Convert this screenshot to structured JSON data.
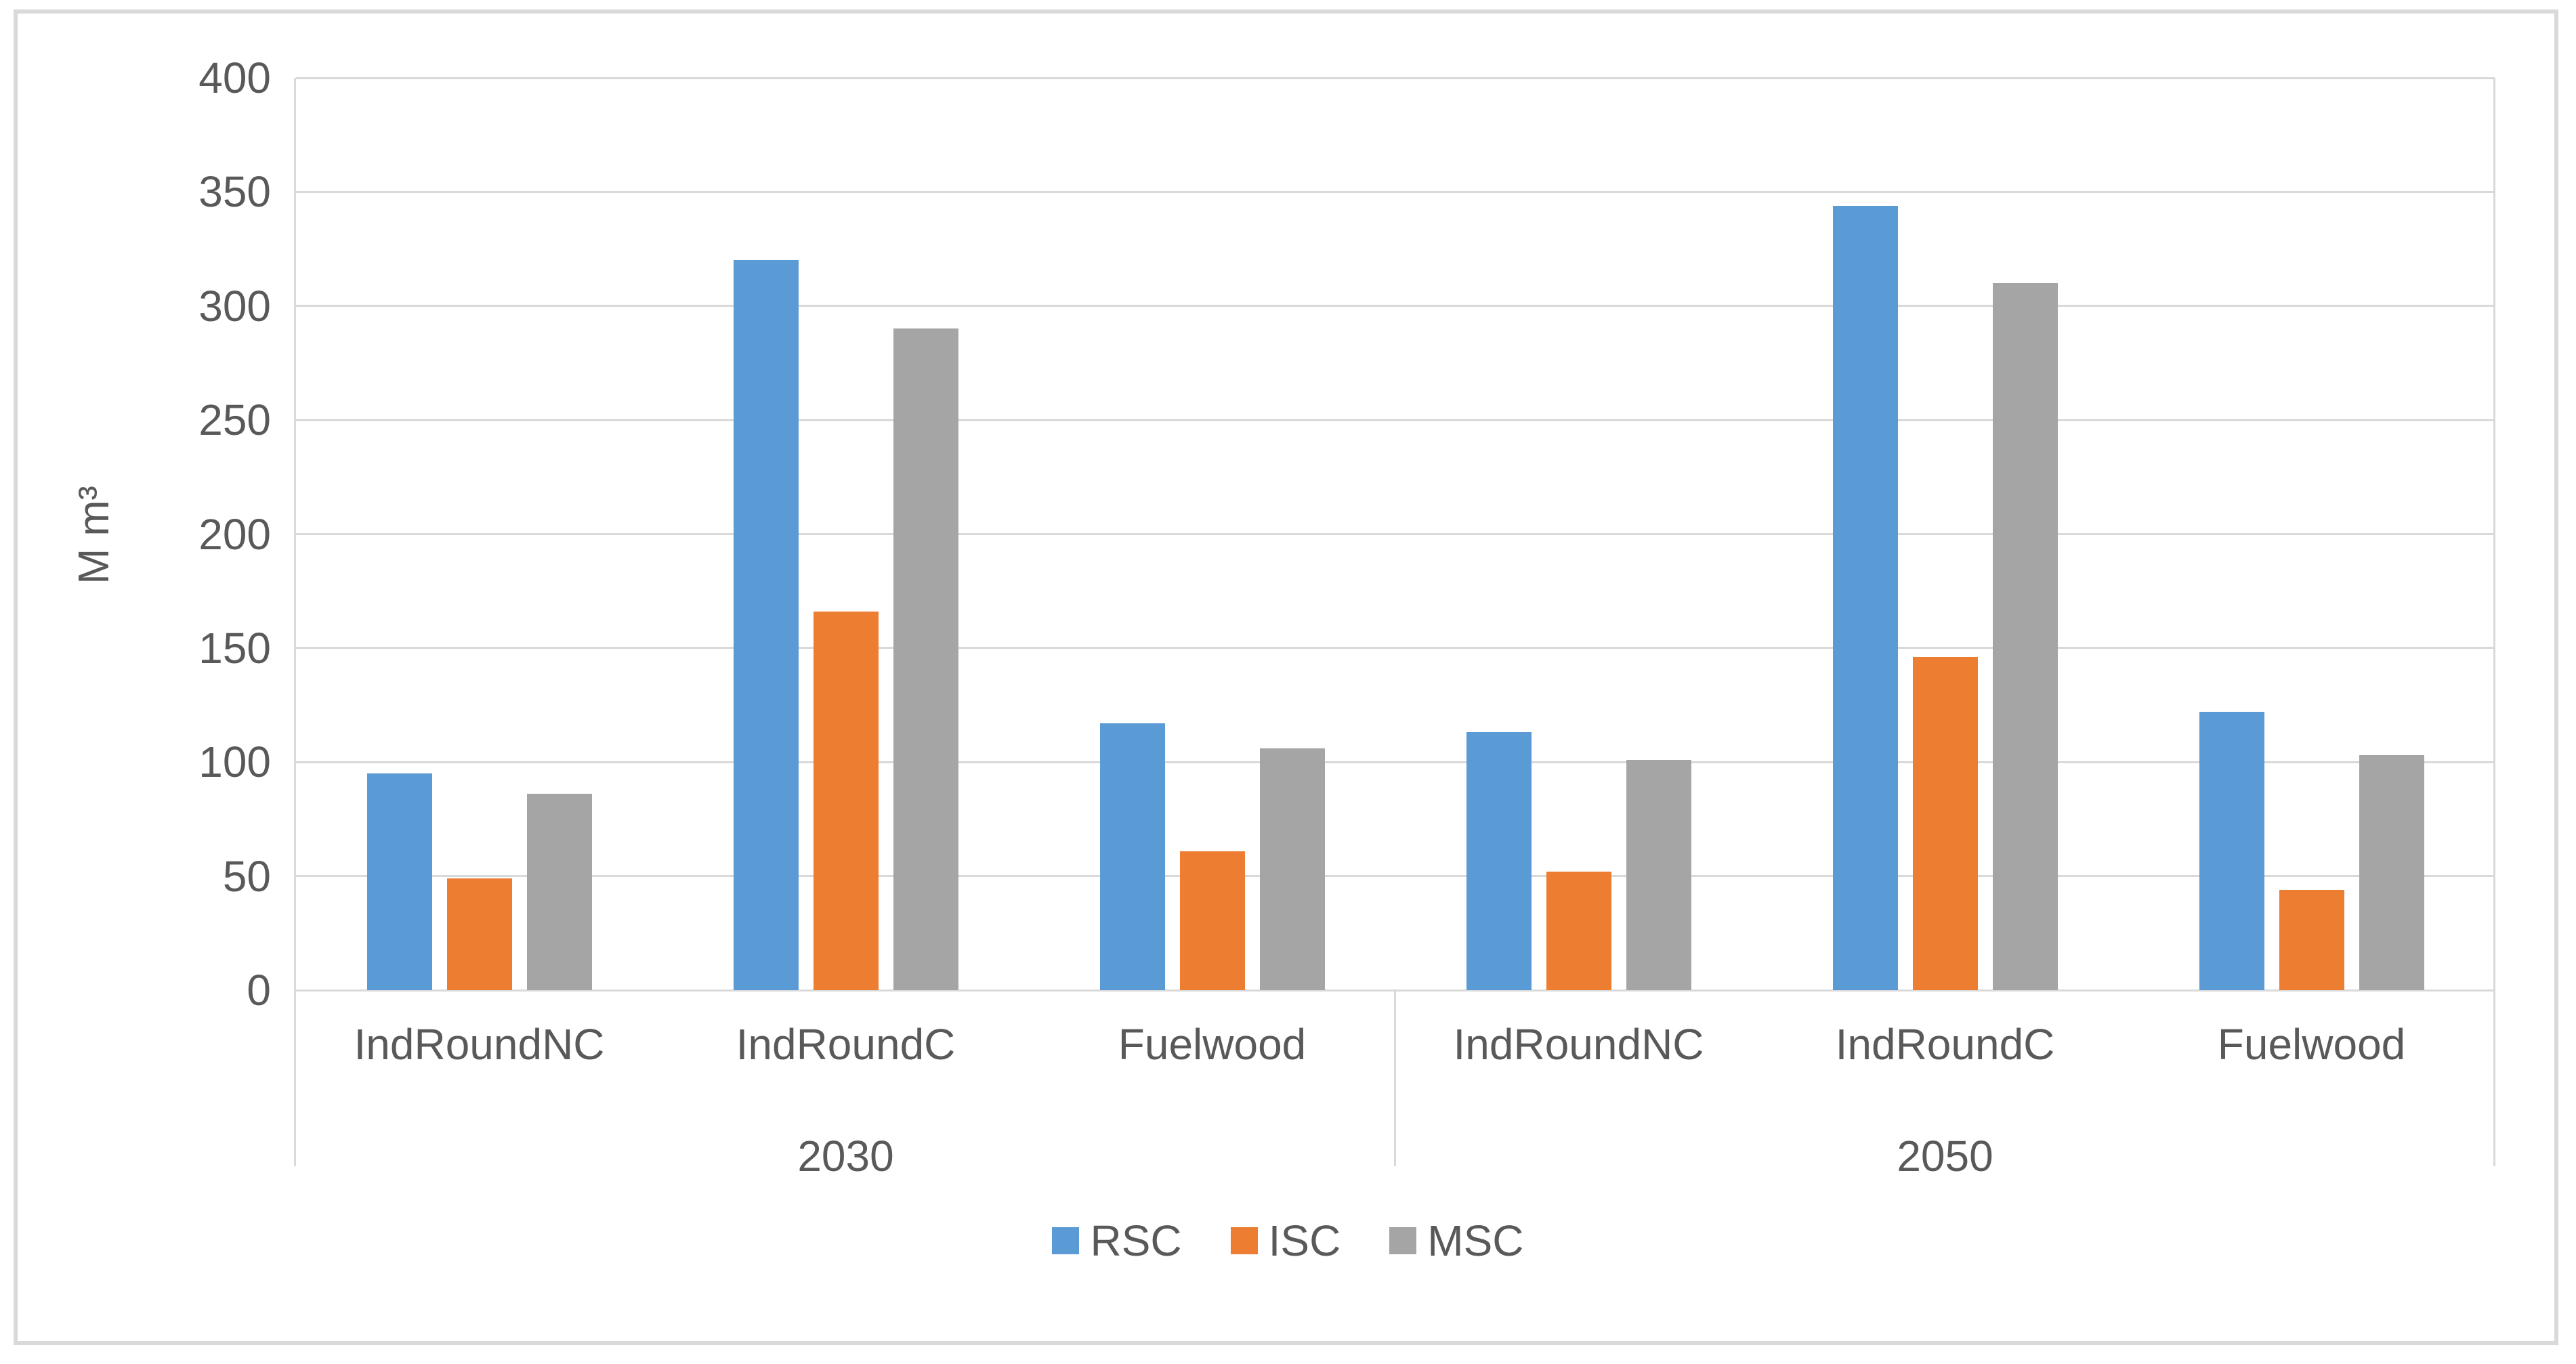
{
  "chart_data": {
    "type": "bar",
    "title": "",
    "xlabel": "",
    "ylabel": "M m³",
    "ylim": [
      0,
      400
    ],
    "ytick_step": 50,
    "grid": "horizontal",
    "legend_position": "bottom",
    "groups": [
      {
        "label": "2030",
        "categories": [
          "IndRoundNC",
          "IndRoundC",
          "Fuelwood"
        ]
      },
      {
        "label": "2050",
        "categories": [
          "IndRoundNC",
          "IndRoundC",
          "Fuelwood"
        ]
      }
    ],
    "series": [
      {
        "name": "RSC",
        "color": "#5B9BD5",
        "values": [
          [
            95,
            320,
            117
          ],
          [
            113,
            344,
            122
          ]
        ]
      },
      {
        "name": "ISC",
        "color": "#ED7D31",
        "values": [
          [
            49,
            166,
            61
          ],
          [
            52,
            146,
            44
          ]
        ]
      },
      {
        "name": "MSC",
        "color": "#A5A5A5",
        "values": [
          [
            86,
            290,
            106
          ],
          [
            101,
            310,
            103
          ]
        ]
      }
    ],
    "axis_text_color": "#595959",
    "gridline_color": "#D9D9D9"
  }
}
